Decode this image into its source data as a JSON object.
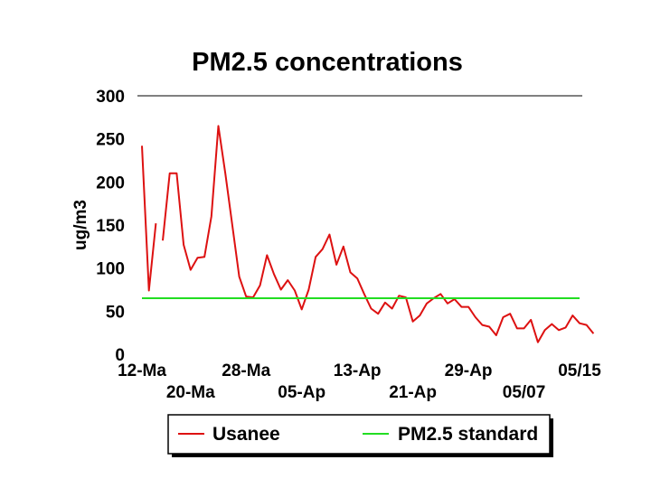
{
  "chart_data": {
    "type": "line",
    "title": "PM2.5 concentrations",
    "ylabel": "ug/m3",
    "xlabel": "",
    "ylim": [
      0,
      300
    ],
    "yticks": [
      0,
      50,
      100,
      150,
      200,
      250,
      300
    ],
    "grid": "top line only",
    "legend_position": "bottom",
    "x_tick_labels": [
      {
        "label": "12-Ma",
        "x": 0,
        "row": "upper"
      },
      {
        "label": "20-Ma",
        "x": 7,
        "row": "lower"
      },
      {
        "label": "28-Ma",
        "x": 15,
        "row": "upper"
      },
      {
        "label": "05-Ap",
        "x": 23,
        "row": "lower"
      },
      {
        "label": "13-Ap",
        "x": 31,
        "row": "upper"
      },
      {
        "label": "21-Ap",
        "x": 39,
        "row": "lower"
      },
      {
        "label": "29-Ap",
        "x": 47,
        "row": "upper"
      },
      {
        "label": "05/07",
        "x": 55,
        "row": "lower"
      },
      {
        "label": "05/15",
        "x": 63,
        "row": "upper"
      }
    ],
    "xlim": [
      0,
      63
    ],
    "series": [
      {
        "name": "Usanee",
        "color": "#dd1111",
        "segments": [
          [
            [
              0,
              242
            ],
            [
              1,
              74
            ],
            [
              2,
              152
            ]
          ],
          [
            [
              3,
              132
            ],
            [
              4,
              210
            ],
            [
              5,
              210
            ],
            [
              6,
              127
            ],
            [
              7,
              98
            ],
            [
              8,
              112
            ],
            [
              9,
              113
            ],
            [
              10,
              160
            ],
            [
              11,
              265
            ],
            [
              12,
              210
            ],
            [
              13,
              150
            ],
            [
              14,
              90
            ],
            [
              15,
              67
            ],
            [
              16,
              66
            ],
            [
              17,
              80
            ],
            [
              18,
              115
            ],
            [
              19,
              93
            ],
            [
              20,
              75
            ],
            [
              21,
              86
            ],
            [
              22,
              74
            ],
            [
              23,
              52
            ],
            [
              24,
              75
            ],
            [
              25,
              113
            ],
            [
              26,
              122
            ],
            [
              27,
              139
            ],
            [
              28,
              104
            ],
            [
              29,
              125
            ],
            [
              30,
              95
            ],
            [
              31,
              88
            ],
            [
              32,
              70
            ],
            [
              33,
              53
            ],
            [
              34,
              47
            ],
            [
              35,
              60
            ],
            [
              36,
              53
            ],
            [
              37,
              68
            ],
            [
              38,
              66
            ],
            [
              39,
              38
            ],
            [
              40,
              45
            ],
            [
              41,
              59
            ],
            [
              42,
              65
            ],
            [
              43,
              70
            ],
            [
              44,
              59
            ],
            [
              45,
              64
            ],
            [
              46,
              55
            ],
            [
              47,
              55
            ],
            [
              48,
              43
            ],
            [
              49,
              34
            ],
            [
              50,
              32
            ],
            [
              51,
              22
            ],
            [
              52,
              43
            ],
            [
              53,
              47
            ],
            [
              54,
              30
            ],
            [
              55,
              30
            ],
            [
              56,
              40
            ],
            [
              57,
              14
            ],
            [
              58,
              28
            ],
            [
              59,
              35
            ],
            [
              60,
              28
            ],
            [
              61,
              31
            ],
            [
              62,
              45
            ],
            [
              63,
              36
            ],
            [
              64,
              34
            ],
            [
              65,
              24
            ]
          ]
        ]
      },
      {
        "name": "PM2.5 standard",
        "color": "#22dd22",
        "value": 65
      }
    ]
  }
}
